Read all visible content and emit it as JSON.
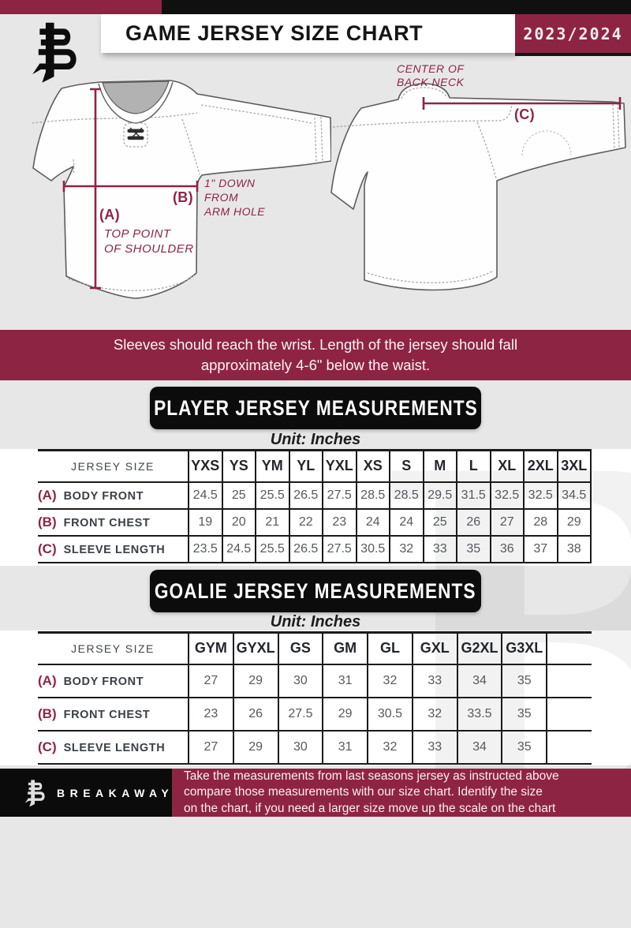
{
  "header": {
    "title": "GAME JERSEY SIZE CHART",
    "season": "2023/2024"
  },
  "diagram": {
    "front": {
      "a_label": "(A)",
      "a_note": [
        "TOP POINT",
        "OF SHOULDER"
      ],
      "b_label": "(B)",
      "b_note": [
        "1\" DOWN",
        "FROM",
        "ARM HOLE"
      ]
    },
    "back": {
      "c_label": "(C)",
      "neck_note": [
        "CENTER OF",
        "BACK NECK"
      ]
    }
  },
  "fit_note": [
    "Sleeves should reach the wrist. Length of the jersey should fall",
    "approximately 4-6\" below the waist."
  ],
  "player_section": {
    "title": "PLAYER JERSEY MEASUREMENTS",
    "unit": "Unit: Inches"
  },
  "player_table": {
    "header_label": "JERSEY SIZE",
    "sizes": [
      "YXS",
      "YS",
      "YM",
      "YL",
      "YXL",
      "XS",
      "S",
      "M",
      "L",
      "XL",
      "2XL",
      "3XL"
    ],
    "rows": [
      {
        "prefix": "(A)",
        "label": "BODY FRONT",
        "values": [
          "24.5",
          "25",
          "25.5",
          "26.5",
          "27.5",
          "28.5",
          "28.5",
          "29.5",
          "31.5",
          "32.5",
          "32.5",
          "34.5"
        ]
      },
      {
        "prefix": "(B)",
        "label": "FRONT CHEST",
        "values": [
          "19",
          "20",
          "21",
          "22",
          "23",
          "24",
          "24",
          "25",
          "26",
          "27",
          "28",
          "29"
        ]
      },
      {
        "prefix": "(C)",
        "label": "SLEEVE LENGTH",
        "values": [
          "23.5",
          "24.5",
          "25.5",
          "26.5",
          "27.5",
          "30.5",
          "32",
          "33",
          "35",
          "36",
          "37",
          "38"
        ]
      }
    ],
    "trailing_empty_col": false
  },
  "goalie_section": {
    "title": "GOALIE JERSEY MEASUREMENTS",
    "unit": "Unit: Inches"
  },
  "goalie_table": {
    "header_label": "JERSEY SIZE",
    "sizes": [
      "GYM",
      "GYXL",
      "GS",
      "GM",
      "GL",
      "GXL",
      "G2XL",
      "G3XL"
    ],
    "rows": [
      {
        "prefix": "(A)",
        "label": "BODY FRONT",
        "values": [
          "27",
          "29",
          "30",
          "31",
          "32",
          "33",
          "34",
          "35"
        ]
      },
      {
        "prefix": "(B)",
        "label": "FRONT CHEST",
        "values": [
          "23",
          "26",
          "27.5",
          "29",
          "30.5",
          "32",
          "33.5",
          "35"
        ]
      },
      {
        "prefix": "(C)",
        "label": "SLEEVE LENGTH",
        "values": [
          "27",
          "29",
          "30",
          "31",
          "32",
          "33",
          "34",
          "35"
        ]
      }
    ],
    "trailing_empty_col": true
  },
  "footer": {
    "brand": "BREAKAWAY",
    "lines": [
      "Take the measurements from last seasons jersey as instructed above",
      "compare those measurements  with our size chart. Identify the size",
      "on the chart, if you need a larger size move up the scale on the chart"
    ]
  },
  "watermark": {
    "glyph": "B"
  },
  "colors": {
    "maroon": "#8e2443",
    "black": "#101010",
    "page_gray": "#e8e7e8"
  }
}
